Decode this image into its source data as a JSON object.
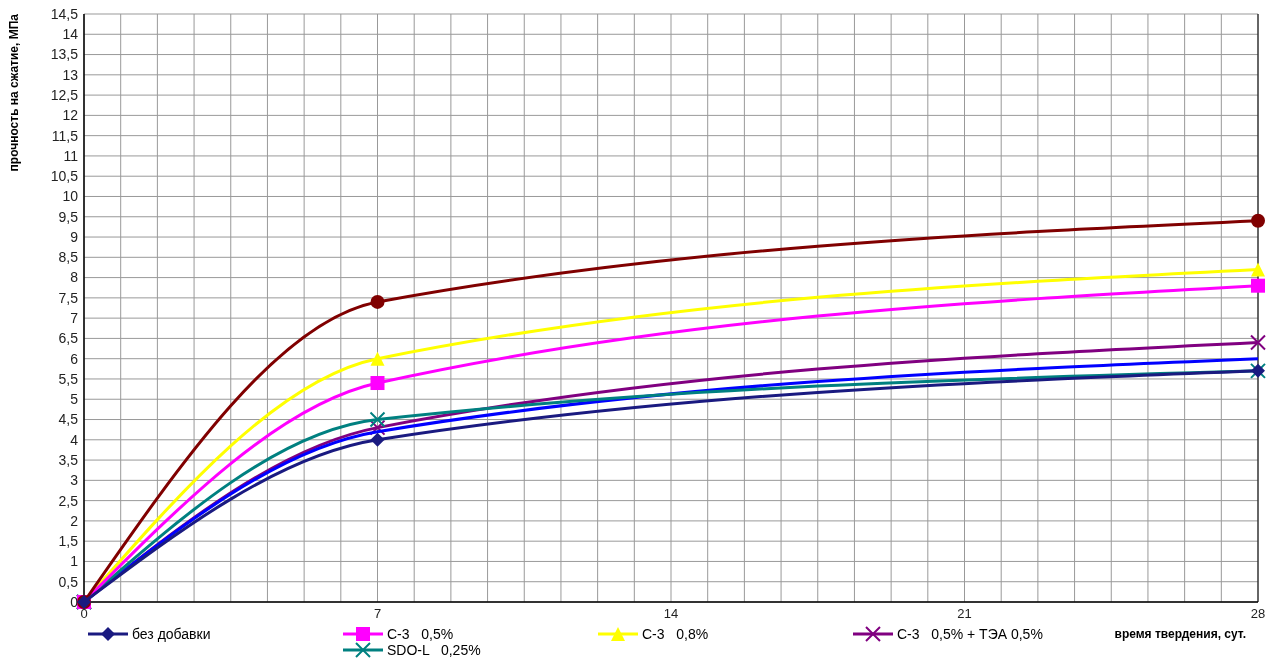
{
  "chart_data": {
    "type": "line",
    "xlabel": "время твердения, сут.",
    "ylabel": "прочность на сжатие, МПа",
    "x": [
      0,
      7,
      28
    ],
    "xlim": [
      0,
      28
    ],
    "xticks": [
      0,
      {
        "value": 0.875,
        "label": null
      },
      {
        "value": 1.75,
        "label": null
      },
      {
        "value": 2.625,
        "label": null
      },
      {
        "value": 3.5,
        "label": null
      },
      {
        "value": 4.375,
        "label": null
      },
      {
        "value": 5.25,
        "label": null
      },
      {
        "value": 6.125,
        "label": null
      },
      7,
      {
        "value": 7.875,
        "label": null
      },
      {
        "value": 8.75,
        "label": null
      },
      {
        "value": 9.625,
        "label": null
      },
      {
        "value": 10.5,
        "label": null
      },
      {
        "value": 11.375,
        "label": null
      },
      {
        "value": 12.25,
        "label": null
      },
      {
        "value": 13.125,
        "label": null
      },
      14,
      {
        "value": 14.875,
        "label": null
      },
      {
        "value": 15.75,
        "label": null
      },
      {
        "value": 16.625,
        "label": null
      },
      {
        "value": 17.5,
        "label": null
      },
      {
        "value": 18.375,
        "label": null
      },
      {
        "value": 19.25,
        "label": null
      },
      {
        "value": 20.125,
        "label": null
      },
      21,
      {
        "value": 21.875,
        "label": null
      },
      {
        "value": 22.75,
        "label": null
      },
      {
        "value": 23.625,
        "label": null
      },
      {
        "value": 24.5,
        "label": null
      },
      {
        "value": 25.375,
        "label": null
      },
      {
        "value": 26.25,
        "label": null
      },
      {
        "value": 27.125,
        "label": null
      },
      28
    ],
    "ylim": [
      0,
      14.5
    ],
    "yticks": [
      0,
      {
        "value": 0.5,
        "label": "0,5"
      },
      1,
      {
        "value": 1.5,
        "label": "1,5"
      },
      2,
      {
        "value": 2.5,
        "label": "2,5"
      },
      3,
      {
        "value": 3.5,
        "label": "3,5"
      },
      4,
      {
        "value": 4.5,
        "label": "4,5"
      },
      5,
      {
        "value": 5.5,
        "label": "5,5"
      },
      6,
      {
        "value": 6.5,
        "label": "6,5"
      },
      7,
      {
        "value": 7.5,
        "label": "7,5"
      },
      8,
      {
        "value": 8.5,
        "label": "8,5"
      },
      9,
      {
        "value": 9.5,
        "label": "9,5"
      },
      10,
      {
        "value": 10.5,
        "label": "10,5"
      },
      11,
      {
        "value": 11.5,
        "label": "11,5"
      },
      12,
      {
        "value": 12.5,
        "label": "12,5"
      },
      13,
      {
        "value": 13.5,
        "label": "13,5"
      },
      14,
      {
        "value": 14.5,
        "label": "14,5"
      }
    ],
    "grid": true,
    "legend": "bottom",
    "series": [
      {
        "name": "без добавки",
        "color": "#1a1a80",
        "marker": "diamond",
        "values": [
          0,
          4.0,
          5.7
        ]
      },
      {
        "color": "#800000",
        "marker": "circle",
        "values": [
          0,
          7.4,
          9.4
        ]
      },
      {
        "name": "С-3   0,5%",
        "color": "#ff00ff",
        "marker": "square",
        "values": [
          0,
          5.4,
          7.8
        ]
      },
      {
        "name": "SDO-L   0,25%",
        "color": "#008080",
        "marker": "cross",
        "values": [
          0,
          4.5,
          5.7
        ]
      },
      {
        "name": "С-3   0,8%",
        "color": "#ffff00",
        "marker": "triangle",
        "values": [
          0,
          6.0,
          8.2
        ]
      },
      {
        "color": "#0000ff",
        "marker": "none",
        "values": [
          0,
          4.2,
          6.0
        ]
      },
      {
        "name": "С-3   0,5% + ТЭА 0,5%",
        "color": "#800080",
        "marker": "cross",
        "values": [
          0,
          4.3,
          6.4
        ]
      }
    ]
  }
}
